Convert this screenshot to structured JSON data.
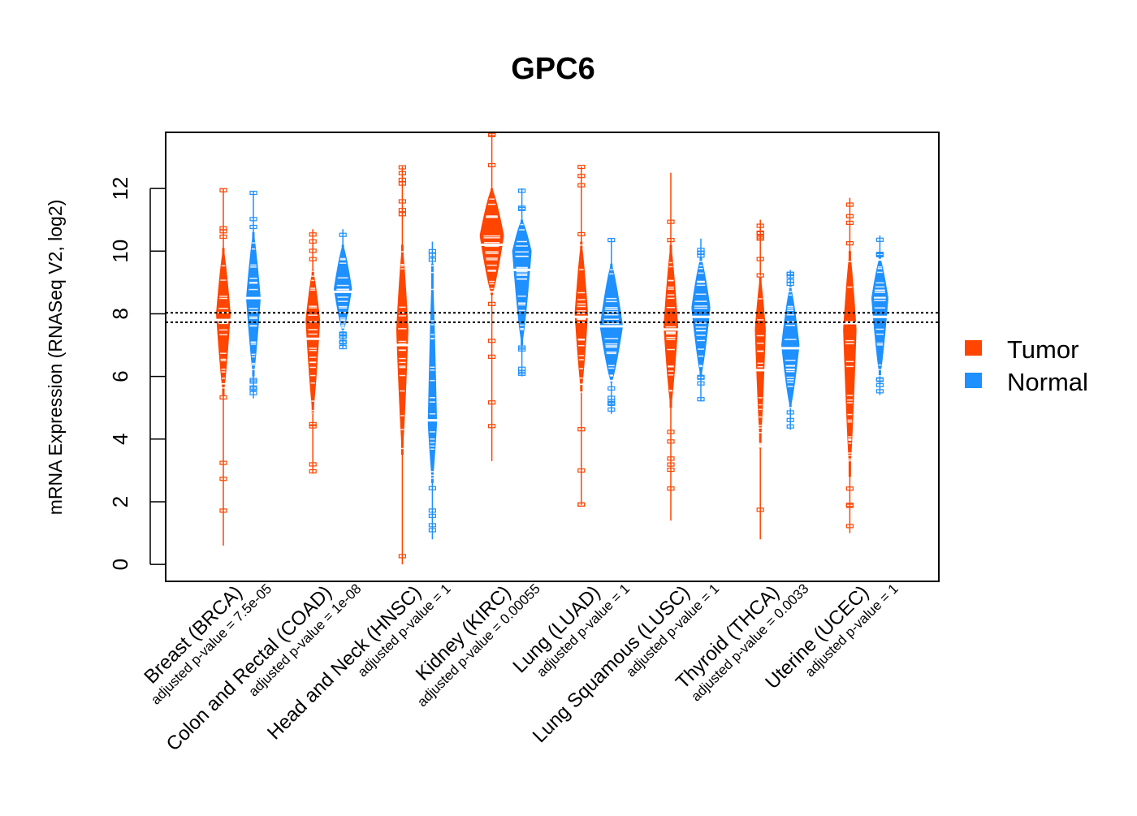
{
  "chart_data": {
    "type": "violin",
    "title": "GPC6",
    "ylabel": "mRNA Expression (RNASeq V2, log2)",
    "xlabel": "",
    "ylim": [
      -0.54,
      13.79
    ],
    "yticks": [
      0,
      2,
      4,
      6,
      8,
      10,
      12
    ],
    "reference_lines": [
      8.03,
      7.73
    ],
    "colors": {
      "Tumor": "#FF4500",
      "Normal": "#1E90FF"
    },
    "legend": {
      "position": "right",
      "entries": [
        "Tumor",
        "Normal"
      ]
    },
    "categories": [
      {
        "label": "Breast (BRCA)",
        "pvalue_label": "adjusted p-value = 7.5e-05",
        "tumor": {
          "min": 0.6,
          "max": 12.0,
          "body_lo": 5.4,
          "body_hi": 10.1,
          "median": 7.8,
          "mode": 8.0,
          "relative_density": 0.6
        },
        "normal": {
          "min": 5.3,
          "max": 11.9,
          "body_lo": 6.0,
          "body_hi": 10.6,
          "median": 8.5,
          "mode": 8.5,
          "relative_density": 0.6
        }
      },
      {
        "label": "Colon and Rectal (COAD)",
        "pvalue_label": "adjusted p-value = 1e-08",
        "tumor": {
          "min": 2.9,
          "max": 10.7,
          "body_lo": 4.8,
          "body_hi": 9.4,
          "median": 7.2,
          "mode": 7.8,
          "relative_density": 0.6
        },
        "normal": {
          "min": 6.9,
          "max": 10.7,
          "body_lo": 7.4,
          "body_hi": 10.2,
          "median": 8.7,
          "mode": 8.8,
          "relative_density": 0.75
        }
      },
      {
        "label": "Head and Neck (HNSC)",
        "pvalue_label": "adjusted p-value = 1",
        "tumor": {
          "min": 0.0,
          "max": 12.7,
          "body_lo": 3.5,
          "body_hi": 10.2,
          "median": 7.0,
          "mode": 7.5,
          "relative_density": 0.5
        },
        "normal": {
          "min": 0.8,
          "max": 10.3,
          "body_lo": 2.6,
          "body_hi": 9.6,
          "median": 4.6,
          "mode": 4.5,
          "relative_density": 0.38
        }
      },
      {
        "label": "Kidney (KIRC)",
        "pvalue_label": "adjusted p-value = 0.00055",
        "tumor": {
          "min": 3.3,
          "max": 13.8,
          "body_lo": 8.6,
          "body_hi": 12.0,
          "median": 10.2,
          "mode": 10.5,
          "relative_density": 1.0
        },
        "normal": {
          "min": 6.0,
          "max": 12.0,
          "body_lo": 7.0,
          "body_hi": 11.0,
          "median": 9.4,
          "mode": 10.0,
          "relative_density": 0.8
        }
      },
      {
        "label": "Lung (LUAD)",
        "pvalue_label": "adjusted p-value = 1",
        "tumor": {
          "min": 1.9,
          "max": 12.7,
          "body_lo": 5.5,
          "body_hi": 10.3,
          "median": 7.9,
          "mode": 8.0,
          "relative_density": 0.55
        },
        "normal": {
          "min": 4.8,
          "max": 10.4,
          "body_lo": 5.8,
          "body_hi": 9.6,
          "median": 7.6,
          "mode": 7.6,
          "relative_density": 0.95
        }
      },
      {
        "label": "Lung Squamous (LUSC)",
        "pvalue_label": "adjusted p-value = 1",
        "tumor": {
          "min": 1.4,
          "max": 12.5,
          "body_lo": 5.0,
          "body_hi": 10.2,
          "median": 7.5,
          "mode": 7.6,
          "relative_density": 0.6
        },
        "normal": {
          "min": 5.2,
          "max": 10.4,
          "body_lo": 6.0,
          "body_hi": 9.8,
          "median": 7.9,
          "mode": 8.2,
          "relative_density": 0.78
        }
      },
      {
        "label": "Thyroid (THCA)",
        "pvalue_label": "adjusted p-value = 0.0033",
        "tumor": {
          "min": 0.8,
          "max": 11.0,
          "body_lo": 3.7,
          "body_hi": 9.2,
          "median": 6.2,
          "mode": 7.5,
          "relative_density": 0.45
        },
        "normal": {
          "min": 4.3,
          "max": 9.4,
          "body_lo": 5.0,
          "body_hi": 8.9,
          "median": 6.9,
          "mode": 7.0,
          "relative_density": 0.75
        }
      },
      {
        "label": "Uterine (UCEC)",
        "pvalue_label": "adjusted p-value = 1",
        "tumor": {
          "min": 1.0,
          "max": 11.7,
          "body_lo": 2.8,
          "body_hi": 10.0,
          "median": 7.7,
          "mode": 7.5,
          "relative_density": 0.55
        },
        "normal": {
          "min": 5.4,
          "max": 10.5,
          "body_lo": 6.0,
          "body_hi": 9.8,
          "median": 7.9,
          "mode": 8.5,
          "relative_density": 0.7
        }
      }
    ]
  }
}
